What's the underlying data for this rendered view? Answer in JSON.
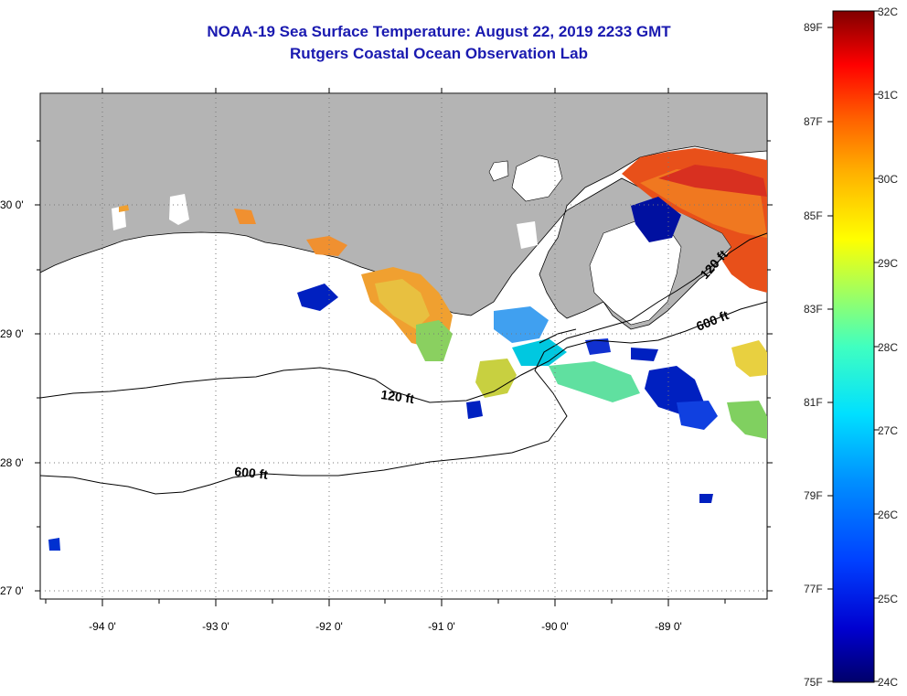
{
  "title": {
    "line1": "NOAA-19 Sea Surface Temperature:  August 22, 2019 2233 GMT",
    "line2": "Rutgers Coastal Ocean Observation Lab"
  },
  "map": {
    "lon_labels": [
      "-94 0'",
      "-93 0'",
      "-92 0'",
      "-91 0'",
      "-90 0'",
      "-89 0'"
    ],
    "lat_labels": [
      "30 0'",
      "29 0'",
      "28 0'",
      "27 0'"
    ],
    "contour_labels": [
      "120 ft",
      "600 ft",
      "600 ft",
      "120 ft"
    ],
    "colors": {
      "land": "#b4b4b4",
      "cloud": "#ffffff",
      "contour": "#000000"
    }
  },
  "colorbar": {
    "fahrenheit_labels": [
      "89F",
      "87F",
      "85F",
      "83F",
      "81F",
      "79F",
      "77F",
      "75F"
    ],
    "celsius_labels": [
      "32C",
      "31C",
      "30C",
      "29C",
      "28C",
      "27C",
      "26C",
      "25C",
      "24C"
    ],
    "colors": [
      "#00007f",
      "#0000ff",
      "#0080ff",
      "#00ffff",
      "#80ff80",
      "#ffff00",
      "#ff8000",
      "#ff0000",
      "#7f0000"
    ]
  }
}
